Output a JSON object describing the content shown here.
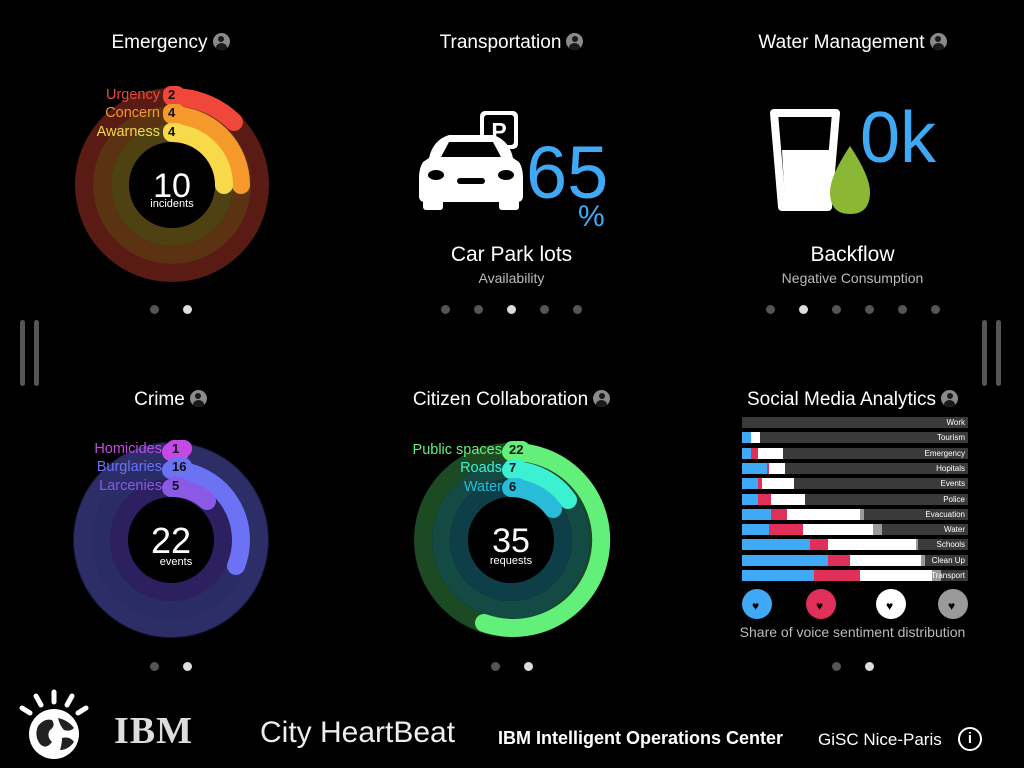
{
  "emergency": {
    "title": "Emergency",
    "rings": [
      {
        "label": "Urgency",
        "value": "2",
        "color": "#f0473a"
      },
      {
        "label": "Concern",
        "value": "4",
        "color": "#f59a2a"
      },
      {
        "label": "Awarness",
        "value": "4",
        "color": "#f7d94a"
      }
    ],
    "total": "10",
    "unit": "incidents"
  },
  "transportation": {
    "title": "Transportation",
    "parking_sign": "P",
    "value": "65",
    "unit": "%",
    "caption": "Car Park lots",
    "subcaption": "Availability"
  },
  "water": {
    "title": "Water Management",
    "value": "0k",
    "caption": "Backflow",
    "subcaption": "Negative Consumption"
  },
  "crime": {
    "title": "Crime",
    "rings": [
      {
        "label": "Homicides",
        "value": "1",
        "color": "#c44ae6"
      },
      {
        "label": "Burglaries",
        "value": "16",
        "color": "#6b72f4"
      },
      {
        "label": "Larcenies",
        "value": "5",
        "color": "#8a5ae6"
      }
    ],
    "total": "22",
    "unit": "events"
  },
  "citizen": {
    "title": "Citizen Collaboration",
    "rings": [
      {
        "label": "Public spaces",
        "value": "22",
        "color": "#63f07a"
      },
      {
        "label": "Roads",
        "value": "7",
        "color": "#3cf0d2"
      },
      {
        "label": "Water",
        "value": "6",
        "color": "#28bcd8"
      }
    ],
    "total": "35",
    "unit": "requests"
  },
  "social": {
    "title": "Social Media Analytics",
    "caption": "Share of voice sentiment distribution",
    "colors": {
      "blue": "#3fa9f5",
      "red": "#e0305a",
      "white": "#ffffff",
      "grey": "#9a9a9a"
    },
    "rows": [
      {
        "label": "Work",
        "segs": [
          0,
          0,
          0,
          0
        ]
      },
      {
        "label": "Tourism",
        "segs": [
          4,
          0,
          4,
          0
        ]
      },
      {
        "label": "Emergency",
        "segs": [
          4,
          3,
          11,
          0
        ]
      },
      {
        "label": "Hopitals",
        "segs": [
          11,
          1,
          7,
          0
        ]
      },
      {
        "label": "Events",
        "segs": [
          7,
          2,
          14,
          0
        ]
      },
      {
        "label": "Police",
        "segs": [
          7,
          6,
          15,
          0
        ]
      },
      {
        "label": "Evacuation",
        "segs": [
          13,
          7,
          32,
          2
        ]
      },
      {
        "label": "Water",
        "segs": [
          12,
          15,
          31,
          4
        ]
      },
      {
        "label": "Schools",
        "segs": [
          30,
          8,
          39,
          1
        ]
      },
      {
        "label": "Clean Up",
        "segs": [
          38,
          10,
          31,
          2
        ]
      },
      {
        "label": "Transport",
        "segs": [
          32,
          20,
          32,
          4
        ]
      }
    ],
    "icons": [
      "positive-icon",
      "negative-icon",
      "neutral-icon",
      "mixed-icon"
    ]
  },
  "pagination": {
    "emergency": {
      "count": 2,
      "active": 1
    },
    "transportation": {
      "count": 5,
      "active": 2
    },
    "water": {
      "count": 6,
      "active": 1
    },
    "crime": {
      "count": 2,
      "active": 1
    },
    "citizen": {
      "count": 2,
      "active": 1
    },
    "social": {
      "count": 2,
      "active": 1
    }
  },
  "footer": {
    "brand": "IBM",
    "app_name": "City HeartBeat",
    "product": "IBM Intelligent Operations Center",
    "partner": "GiSC Nice-Paris",
    "info": "i"
  }
}
